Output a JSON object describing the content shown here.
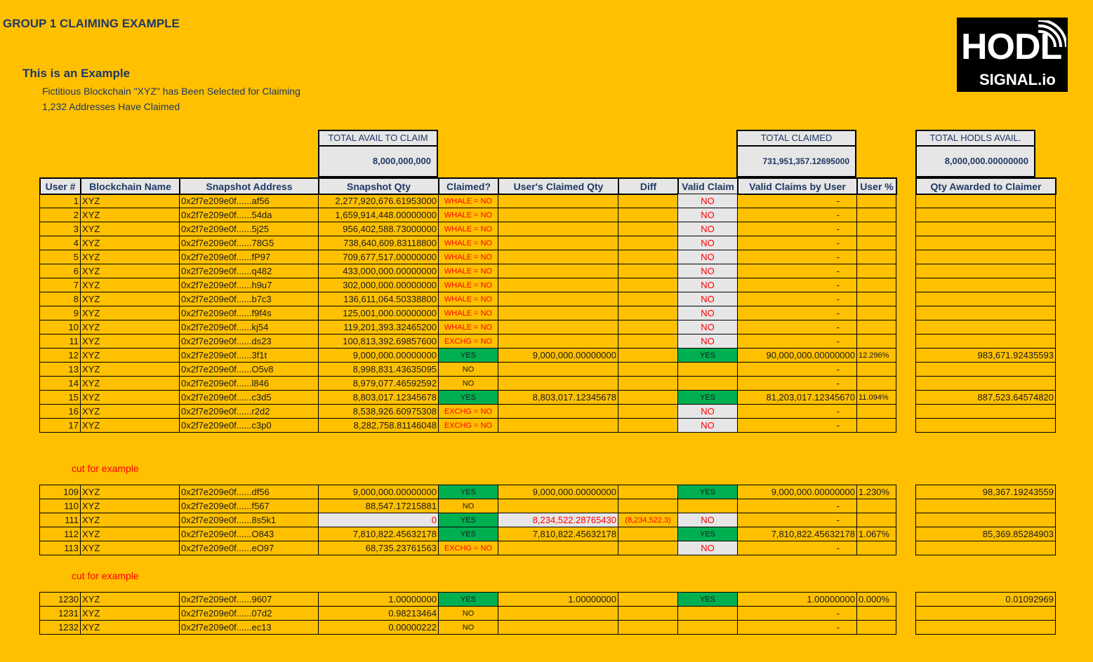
{
  "title": "GROUP 1 CLAIMING EXAMPLE",
  "subtitle": "This is an Example",
  "desc1": "Fictitious Blockchain \"XYZ\" has Been Selected for Claiming",
  "desc2": "1,232 Addresses Have Claimed",
  "logo": {
    "line1": "HODL",
    "line2": "SIGNAL.io",
    "icon": "signal-waves-icon"
  },
  "totals": {
    "avail_label": "TOTAL AVAIL TO CLAIM",
    "avail_value": "8,000,000,000",
    "claimed_label": "TOTAL CLAIMED",
    "claimed_value": "731,951,357.12695000",
    "hodls_label": "TOTAL HODLS AVAIL.",
    "hodls_value": "8,000,000.00000000"
  },
  "headers": [
    "User #",
    "Blockchain Name",
    "Snapshot Address",
    "Snapshot Qty",
    "Claimed?",
    "User's Claimed Qty",
    "Diff",
    "Valid Claim",
    "Valid Claims by User",
    "User %",
    "Qty Awarded to Claimer"
  ],
  "cut_text": "cut for example",
  "colors": {
    "background": "#FFC000",
    "header_fill": "#E7E6E6",
    "yes_fill": "#00B050",
    "no_text": "#FF0000"
  },
  "rows": [
    [
      "1",
      "XYZ",
      "0x2f7e209e0f......af56",
      "2,277,920,676.61953000",
      "WHALE = NO",
      "",
      "",
      "NO",
      "-",
      "",
      ""
    ],
    [
      "2",
      "XYZ",
      "0x2f7e209e0f......54da",
      "1,659,914,448.00000000",
      "WHALE = NO",
      "",
      "",
      "NO",
      "-",
      "",
      ""
    ],
    [
      "3",
      "XYZ",
      "0x2f7e209e0f......5j25",
      "956,402,588.73000000",
      "WHALE = NO",
      "",
      "",
      "NO",
      "-",
      "",
      ""
    ],
    [
      "4",
      "XYZ",
      "0x2f7e209e0f......78G5",
      "738,640,609.83118800",
      "WHALE = NO",
      "",
      "",
      "NO",
      "-",
      "",
      ""
    ],
    [
      "5",
      "XYZ",
      "0x2f7e209e0f......fP97",
      "709,677,517.00000000",
      "WHALE = NO",
      "",
      "",
      "NO",
      "-",
      "",
      ""
    ],
    [
      "6",
      "XYZ",
      "0x2f7e209e0f......q482",
      "433,000,000.00000000",
      "WHALE = NO",
      "",
      "",
      "NO",
      "-",
      "",
      ""
    ],
    [
      "7",
      "XYZ",
      "0x2f7e209e0f......h9u7",
      "302,000,000.00000000",
      "WHALE = NO",
      "",
      "",
      "NO",
      "-",
      "",
      ""
    ],
    [
      "8",
      "XYZ",
      "0x2f7e209e0f......b7c3",
      "136,611,064.50338800",
      "WHALE = NO",
      "",
      "",
      "NO",
      "-",
      "",
      ""
    ],
    [
      "9",
      "XYZ",
      "0x2f7e209e0f......f9f4s",
      "125,001,000.00000000",
      "WHALE = NO",
      "",
      "",
      "NO",
      "-",
      "",
      ""
    ],
    [
      "10",
      "XYZ",
      "0x2f7e209e0f......kj54",
      "119,201,393.32465200",
      "WHALE = NO",
      "",
      "",
      "NO",
      "-",
      "",
      ""
    ],
    [
      "11",
      "XYZ",
      "0x2f7e209e0f......ds23",
      "100,813,392.69857600",
      "EXCHG = NO",
      "",
      "",
      "NO",
      "-",
      "",
      ""
    ],
    [
      "12",
      "XYZ",
      "0x2f7e209e0f......3f1t",
      "9,000,000.00000000",
      "YES",
      "9,000,000.00000000",
      "",
      "YES",
      "90,000,000.00000000",
      "12.296%",
      "983,671.92435593"
    ],
    [
      "13",
      "XYZ",
      "0x2f7e209e0f......O5v8",
      "8,998,831.43635095",
      "NO",
      "",
      "",
      "",
      "-",
      "",
      ""
    ],
    [
      "14",
      "XYZ",
      "0x2f7e209e0f......l846",
      "8,979,077.46592592",
      "NO",
      "",
      "",
      "",
      "-",
      "",
      ""
    ],
    [
      "15",
      "XYZ",
      "0x2f7e209e0f......c3d5",
      "8,803,017.12345678",
      "YES",
      "8,803,017.12345678",
      "",
      "YES",
      "81,203,017.12345670",
      "11.094%",
      "887,523.64574820"
    ],
    [
      "16",
      "XYZ",
      "0x2f7e209e0f......r2d2",
      "8,538,926.60975308",
      "EXCHG = NO",
      "",
      "",
      "NO",
      "-",
      "",
      ""
    ],
    [
      "17",
      "XYZ",
      "0x2f7e209e0f......c3p0",
      "8,282,758.81146048",
      "EXCHG = NO",
      "",
      "",
      "NO",
      "-",
      "",
      ""
    ],
    [
      "109",
      "XYZ",
      "0x2f7e209e0f......df56",
      "9,000,000.00000000",
      "YES",
      "9,000,000.00000000",
      "",
      "YES",
      "9,000,000.00000000",
      "1.230%",
      "98,367.19243559"
    ],
    [
      "110",
      "XYZ",
      "0x2f7e209e0f......f567",
      "88,547.17215881",
      "NO",
      "",
      "",
      "",
      "-",
      "",
      ""
    ],
    [
      "111",
      "XYZ",
      "0x2f7e209e0f......8s5k1",
      "0",
      "YES",
      "8,234,522.28765430",
      "(8,234,522.3)",
      "NO",
      "-",
      "",
      ""
    ],
    [
      "112",
      "XYZ",
      "0x2f7e209e0f......O843",
      "7,810,822.45632178",
      "YES",
      "7,810,822.45632178",
      "",
      "YES",
      "7,810,822.45632178",
      "1.067%",
      "85,369.85284903"
    ],
    [
      "113",
      "XYZ",
      "0x2f7e209e0f......eO97",
      "68,735.23761563",
      "EXCHG = NO",
      "",
      "",
      "NO",
      "-",
      "",
      ""
    ],
    [
      "1230",
      "XYZ",
      "0x2f7e209e0f......9607",
      "1.00000000",
      "YES",
      "1.00000000",
      "",
      "YES",
      "1.00000000",
      "0.000%",
      "0.01092969"
    ],
    [
      "1231",
      "XYZ",
      "0x2f7e209e0f......07d2",
      "0.98213464",
      "NO",
      "",
      "",
      "",
      "-",
      "",
      ""
    ],
    [
      "1232",
      "XYZ",
      "0x2f7e209e0f......ec13",
      "0.00000222",
      "NO",
      "",
      "",
      "",
      "-",
      "",
      ""
    ]
  ]
}
